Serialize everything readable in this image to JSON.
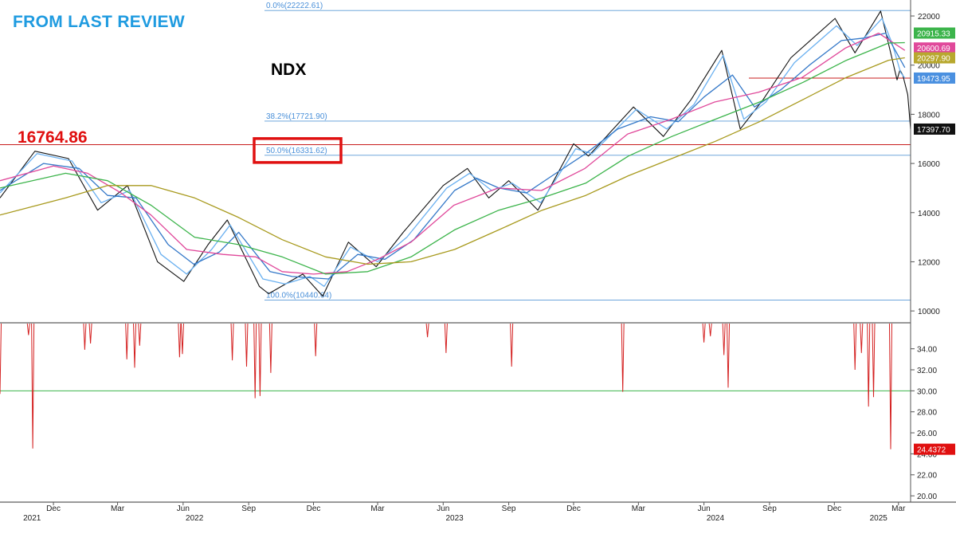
{
  "header": {
    "review_title": "FROM LAST REVIEW",
    "ticker": "NDX",
    "level_label": "16764.86"
  },
  "chart_data": [
    {
      "type": "line",
      "panel": "price",
      "title": "NDX",
      "y_scale": "linear",
      "ylim": [
        9550,
        22650
      ],
      "y_ticks": [
        10000,
        12000,
        14000,
        16000,
        18000,
        20000,
        22000
      ],
      "y_tick_labels": [
        "10000",
        "12000",
        "14000",
        "16000",
        "18000",
        "20000",
        "22000"
      ],
      "x_range": [
        "2021-10-01",
        "2025-04-01"
      ],
      "x_month_labels": [
        {
          "date": "2021-12-15",
          "label": "Dec"
        },
        {
          "date": "2022-03-15",
          "label": "Mar"
        },
        {
          "date": "2022-06-15",
          "label": "Jun"
        },
        {
          "date": "2022-09-15",
          "label": "Sep"
        },
        {
          "date": "2022-12-15",
          "label": "Dec"
        },
        {
          "date": "2023-03-15",
          "label": "Mar"
        },
        {
          "date": "2023-06-15",
          "label": "Jun"
        },
        {
          "date": "2023-09-15",
          "label": "Sep"
        },
        {
          "date": "2023-12-15",
          "label": "Dec"
        },
        {
          "date": "2024-03-15",
          "label": "Mar"
        },
        {
          "date": "2024-06-15",
          "label": "Jun"
        },
        {
          "date": "2024-09-15",
          "label": "Sep"
        },
        {
          "date": "2024-12-15",
          "label": "Dec"
        },
        {
          "date": "2025-03-15",
          "label": "Mar"
        }
      ],
      "x_year_labels": [
        {
          "date": "2021-11-15",
          "label": "2021"
        },
        {
          "date": "2022-07-01",
          "label": "2022"
        },
        {
          "date": "2023-07-01",
          "label": "2023"
        },
        {
          "date": "2024-07-01",
          "label": "2024"
        },
        {
          "date": "2025-02-15",
          "label": "2025"
        }
      ],
      "fib_levels": [
        {
          "label": "0.0%(22222.61)",
          "value": 22222.61
        },
        {
          "label": "38.2%(17721.90)",
          "value": 17721.9
        },
        {
          "label": "50.0%(16331.62)",
          "value": 16331.62
        },
        {
          "label": "100.0%(10440.64)",
          "value": 10440.64
        }
      ],
      "horizontal_levels": [
        {
          "value": 16764.86,
          "color": "#c81e1e"
        },
        {
          "value": 19473.95,
          "color": "#c81e1e"
        }
      ],
      "series": [
        {
          "color": "#111111",
          "x": [
            "2021-10-01",
            "2021-11-19",
            "2022-01-05",
            "2022-02-15",
            "2022-03-29",
            "2022-05-10",
            "2022-06-16",
            "2022-07-20",
            "2022-08-16",
            "2022-09-30",
            "2022-10-13",
            "2022-11-30",
            "2022-12-28",
            "2023-02-02",
            "2023-03-13",
            "2023-04-20",
            "2023-06-15",
            "2023-07-19",
            "2023-08-18",
            "2023-09-15",
            "2023-10-26",
            "2023-12-15",
            "2024-01-05",
            "2024-03-08",
            "2024-04-19",
            "2024-05-28",
            "2024-07-10",
            "2024-08-05",
            "2024-09-06",
            "2024-10-15",
            "2024-12-16",
            "2025-01-13",
            "2025-02-18",
            "2025-03-04",
            "2025-03-13",
            "2025-03-17",
            "2025-03-21",
            "2025-03-28",
            "2025-04-01"
          ],
          "values": [
            14600,
            16500,
            16200,
            14100,
            15100,
            12000,
            11200,
            12700,
            13700,
            11000,
            10700,
            11500,
            10600,
            12800,
            11800,
            13200,
            15100,
            15800,
            14600,
            15300,
            14100,
            16800,
            16300,
            18300,
            17100,
            18600,
            20600,
            17400,
            18600,
            20300,
            21900,
            20500,
            22200,
            20500,
            19400,
            19800,
            19600,
            18800,
            17397.7
          ]
        },
        {
          "color": "#6ab0f0",
          "x": [
            "2021-10-01",
            "2021-11-22",
            "2022-01-10",
            "2022-02-20",
            "2022-04-01",
            "2022-05-15",
            "2022-06-20",
            "2022-07-25",
            "2022-08-20",
            "2022-10-05",
            "2022-11-05",
            "2022-12-10",
            "2022-12-30",
            "2023-02-05",
            "2023-03-15",
            "2023-04-25",
            "2023-06-20",
            "2023-07-22",
            "2023-08-22",
            "2023-09-20",
            "2023-10-30",
            "2023-12-18",
            "2024-01-10",
            "2024-03-12",
            "2024-04-24",
            "2024-06-01",
            "2024-07-12",
            "2024-08-10",
            "2024-09-10",
            "2024-10-20",
            "2024-12-18",
            "2025-01-16",
            "2025-02-20",
            "2025-03-06",
            "2025-03-18",
            "2025-03-24"
          ],
          "values": [
            14800,
            16400,
            16100,
            14400,
            14900,
            12300,
            11500,
            12500,
            13500,
            11300,
            11100,
            11400,
            11000,
            12600,
            12000,
            13000,
            15000,
            15600,
            14900,
            15200,
            14400,
            16600,
            16400,
            18200,
            17400,
            18400,
            20400,
            17800,
            18500,
            20100,
            21600,
            20800,
            21900,
            20900,
            19700,
            19473.95
          ]
        },
        {
          "color": "#3478c8",
          "x": [
            "2021-10-01",
            "2021-12-01",
            "2022-01-20",
            "2022-03-01",
            "2022-04-10",
            "2022-05-25",
            "2022-06-30",
            "2022-08-05",
            "2022-09-01",
            "2022-10-15",
            "2022-11-15",
            "2023-01-05",
            "2023-02-15",
            "2023-03-25",
            "2023-05-05",
            "2023-07-01",
            "2023-08-01",
            "2023-09-01",
            "2023-10-10",
            "2023-11-15",
            "2024-01-01",
            "2024-02-15",
            "2024-04-01",
            "2024-05-10",
            "2024-06-15",
            "2024-07-25",
            "2024-08-25",
            "2024-10-01",
            "2024-11-10",
            "2024-12-25",
            "2025-01-25",
            "2025-02-25",
            "2025-03-24"
          ],
          "values": [
            14900,
            16000,
            15800,
            14700,
            14600,
            12700,
            11900,
            12400,
            13200,
            11600,
            11400,
            11300,
            12300,
            12100,
            12900,
            14900,
            15400,
            15000,
            14800,
            15500,
            16400,
            17400,
            17900,
            17700,
            18700,
            19600,
            18300,
            19000,
            20000,
            21000,
            21100,
            21300,
            19900
          ]
        },
        {
          "color": "#e0489a",
          "x": [
            "2021-10-01",
            "2021-12-15",
            "2022-02-01",
            "2022-03-20",
            "2022-05-01",
            "2022-06-20",
            "2022-08-10",
            "2022-09-25",
            "2022-11-01",
            "2022-12-15",
            "2023-01-31",
            "2023-03-15",
            "2023-05-01",
            "2023-06-30",
            "2023-08-31",
            "2023-10-31",
            "2023-12-31",
            "2024-02-29",
            "2024-04-30",
            "2024-06-30",
            "2024-08-31",
            "2024-10-31",
            "2024-12-31",
            "2025-02-15",
            "2025-03-24"
          ],
          "values": [
            15300,
            15900,
            15600,
            14800,
            13900,
            12500,
            12300,
            12200,
            11600,
            11500,
            11600,
            12100,
            12800,
            14300,
            15000,
            14900,
            15800,
            17200,
            17800,
            18500,
            18900,
            19500,
            20700,
            21300,
            20600.69
          ]
        },
        {
          "color": "#3cb44b",
          "x": [
            "2021-10-01",
            "2022-01-01",
            "2022-03-01",
            "2022-05-01",
            "2022-07-01",
            "2022-09-01",
            "2022-11-01",
            "2023-01-01",
            "2023-03-01",
            "2023-05-01",
            "2023-07-01",
            "2023-09-01",
            "2023-11-01",
            "2024-01-01",
            "2024-03-01",
            "2024-05-01",
            "2024-07-01",
            "2024-09-01",
            "2024-11-01",
            "2025-01-01",
            "2025-03-01",
            "2025-03-24"
          ],
          "values": [
            15000,
            15600,
            15300,
            14300,
            13000,
            12700,
            12200,
            11500,
            11600,
            12200,
            13300,
            14100,
            14600,
            15200,
            16300,
            17100,
            17800,
            18500,
            19300,
            20200,
            20900,
            20915.33
          ]
        },
        {
          "color": "#a89a1e",
          "x": [
            "2021-10-01",
            "2022-01-01",
            "2022-03-01",
            "2022-05-01",
            "2022-07-01",
            "2022-09-01",
            "2022-11-01",
            "2023-01-01",
            "2023-03-01",
            "2023-05-01",
            "2023-07-01",
            "2023-09-01",
            "2023-11-01",
            "2024-01-01",
            "2024-03-01",
            "2024-05-01",
            "2024-07-01",
            "2024-09-01",
            "2024-11-01",
            "2025-01-01",
            "2025-03-01",
            "2025-03-24"
          ],
          "values": [
            13900,
            14600,
            15100,
            15100,
            14600,
            13800,
            12900,
            12200,
            11900,
            12000,
            12500,
            13300,
            14100,
            14700,
            15500,
            16200,
            16900,
            17700,
            18600,
            19500,
            20200,
            20297.9
          ]
        }
      ],
      "price_badges": [
        {
          "label": "20915.33",
          "value": 20915.33,
          "bg": "#3cb44b",
          "fg": "#ffffff"
        },
        {
          "label": "20600.69",
          "value": 20600.69,
          "bg": "#e0489a",
          "fg": "#ffffff"
        },
        {
          "label": "20297.90",
          "value": 20297.9,
          "bg": "#b8a82e",
          "fg": "#ffffff"
        },
        {
          "label": "19473.95",
          "value": 19473.95,
          "bg": "#4a90e0",
          "fg": "#ffffff"
        },
        {
          "label": "17397.70",
          "value": 17397.7,
          "bg": "#111111",
          "fg": "#ffffff"
        }
      ]
    },
    {
      "type": "line",
      "panel": "indicator",
      "ylim": [
        19.4,
        36.4
      ],
      "y_ticks": [
        20,
        22,
        24,
        26,
        28,
        30,
        32,
        34
      ],
      "y_tick_labels": [
        "20.00",
        "22.00",
        "24.00",
        "26.00",
        "28.00",
        "30.00",
        "32.00",
        "34.00"
      ],
      "reference_line": {
        "value": 30.0,
        "color": "#3cb44b"
      },
      "series": [
        {
          "color": "#d42020",
          "spikes": [
            {
              "date": "2021-10-01",
              "value": 29.7
            },
            {
              "date": "2021-11-10",
              "value": 35.3
            },
            {
              "date": "2021-11-16",
              "value": 24.5
            },
            {
              "date": "2022-01-28",
              "value": 33.9
            },
            {
              "date": "2022-02-05",
              "value": 34.5
            },
            {
              "date": "2022-03-28",
              "value": 33.0
            },
            {
              "date": "2022-04-08",
              "value": 32.2
            },
            {
              "date": "2022-04-15",
              "value": 34.3
            },
            {
              "date": "2022-06-10",
              "value": 33.2
            },
            {
              "date": "2022-06-14",
              "value": 33.5
            },
            {
              "date": "2022-08-23",
              "value": 32.9
            },
            {
              "date": "2022-09-12",
              "value": 32.3
            },
            {
              "date": "2022-09-24",
              "value": 29.3
            },
            {
              "date": "2022-10-01",
              "value": 29.5
            },
            {
              "date": "2022-10-16",
              "value": 31.7
            },
            {
              "date": "2022-12-18",
              "value": 33.3
            },
            {
              "date": "2023-05-24",
              "value": 35.1
            },
            {
              "date": "2023-06-19",
              "value": 33.6
            },
            {
              "date": "2023-09-19",
              "value": 32.3
            },
            {
              "date": "2024-02-22",
              "value": 29.9
            },
            {
              "date": "2024-06-15",
              "value": 34.6
            },
            {
              "date": "2024-06-24",
              "value": 35.2
            },
            {
              "date": "2024-07-13",
              "value": 33.4
            },
            {
              "date": "2024-07-19",
              "value": 30.3
            },
            {
              "date": "2025-01-13",
              "value": 32.0
            },
            {
              "date": "2025-01-22",
              "value": 33.6
            },
            {
              "date": "2025-02-01",
              "value": 28.5
            },
            {
              "date": "2025-02-08",
              "value": 29.4
            },
            {
              "date": "2025-03-04",
              "value": 24.4372
            }
          ]
        }
      ],
      "value_badge": {
        "label": "24.4372",
        "value": 24.4372,
        "bg": "#e01010",
        "fg": "#ffffff"
      }
    }
  ]
}
